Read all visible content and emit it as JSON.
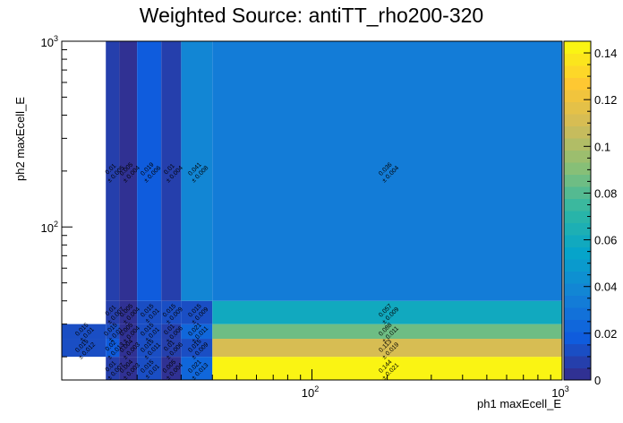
{
  "chart_data": {
    "type": "heatmap",
    "title": "Weighted Source: antiTT_rho200-320",
    "xlabel": "ph1 maxEcell_E",
    "ylabel": "ph2 maxEcell_E",
    "x_scale": "log",
    "y_scale": "log",
    "xlim": [
      10,
      1000
    ],
    "ylim": [
      15,
      1000
    ],
    "x_tick_labels": [
      {
        "value": 100,
        "base": "10",
        "exp": "2"
      },
      {
        "value": 1000,
        "base": "10",
        "exp": "3"
      }
    ],
    "y_tick_labels": [
      {
        "value": 100,
        "base": "10",
        "exp": "2"
      },
      {
        "value": 1000,
        "base": "10",
        "exp": "3"
      }
    ],
    "colorbar": {
      "min": 0,
      "max": 0.145,
      "ticks": [
        0,
        0.02,
        0.04,
        0.06,
        0.08,
        0.1,
        0.12,
        0.14
      ],
      "tick_labels": [
        "0",
        "0.02",
        "0.04",
        "0.06",
        "0.08",
        "0.1",
        "0.12",
        "0.14"
      ]
    },
    "x_edges": [
      10,
      15,
      17,
      20,
      25,
      30,
      40,
      1000
    ],
    "y_edges": [
      15,
      20,
      25,
      30,
      40,
      1000
    ],
    "cells": [
      {
        "xi": 0,
        "yi": 1,
        "value": 0.015,
        "error": 0.012
      },
      {
        "xi": 0,
        "yi": 2,
        "value": 0.015,
        "error": 0.01
      },
      {
        "xi": 1,
        "yi": 0,
        "value": 0.01,
        "error": 0.007
      },
      {
        "xi": 1,
        "yi": 1,
        "value": 0.02,
        "error": 0.013
      },
      {
        "xi": 1,
        "yi": 2,
        "value": 0.015,
        "error": 0.01
      },
      {
        "xi": 1,
        "yi": 3,
        "value": 0.01,
        "error": 0.007
      },
      {
        "xi": 1,
        "yi": 4,
        "value": 0.01,
        "error": 0.005
      },
      {
        "xi": 2,
        "yi": 0,
        "value": 0.004,
        "error": 0.003
      },
      {
        "xi": 2,
        "yi": 1,
        "value": 0.004,
        "error": 0.003
      },
      {
        "xi": 2,
        "yi": 2,
        "value": 0.005,
        "error": 0.004
      },
      {
        "xi": 2,
        "yi": 3,
        "value": 0.005,
        "error": 0.004
      },
      {
        "xi": 2,
        "yi": 4,
        "value": 0.005,
        "error": 0.004
      },
      {
        "xi": 3,
        "yi": 0,
        "value": 0.015,
        "error": 0.01
      },
      {
        "xi": 3,
        "yi": 1,
        "value": 0.015,
        "error": 0.011
      },
      {
        "xi": 3,
        "yi": 2,
        "value": 0.015,
        "error": 0.01
      },
      {
        "xi": 3,
        "yi": 3,
        "value": 0.015,
        "error": 0.01
      },
      {
        "xi": 3,
        "yi": 4,
        "value": 0.019,
        "error": 0.006
      },
      {
        "xi": 4,
        "yi": 0,
        "value": 0.005,
        "error": 0.004
      },
      {
        "xi": 4,
        "yi": 1,
        "value": 0.01,
        "error": 0.006
      },
      {
        "xi": 4,
        "yi": 2,
        "value": 0.01,
        "error": 0.006
      },
      {
        "xi": 4,
        "yi": 3,
        "value": 0.015,
        "error": 0.009
      },
      {
        "xi": 4,
        "yi": 4,
        "value": 0.01,
        "error": 0.004
      },
      {
        "xi": 5,
        "yi": 0,
        "value": 0.021,
        "error": 0.013
      },
      {
        "xi": 5,
        "yi": 1,
        "value": 0.015,
        "error": 0.009
      },
      {
        "xi": 5,
        "yi": 2,
        "value": 0.021,
        "error": 0.011
      },
      {
        "xi": 5,
        "yi": 3,
        "value": 0.015,
        "error": 0.009
      },
      {
        "xi": 5,
        "yi": 4,
        "value": 0.041,
        "error": 0.008
      },
      {
        "xi": 6,
        "yi": 0,
        "value": 0.144,
        "error": 0.021
      },
      {
        "xi": 6,
        "yi": 1,
        "value": 0.113,
        "error": 0.019
      },
      {
        "xi": 6,
        "yi": 2,
        "value": 0.088,
        "error": 0.011
      },
      {
        "xi": 6,
        "yi": 3,
        "value": 0.057,
        "error": 0.009
      },
      {
        "xi": 6,
        "yi": 4,
        "value": 0.036,
        "error": 0.004
      }
    ]
  }
}
